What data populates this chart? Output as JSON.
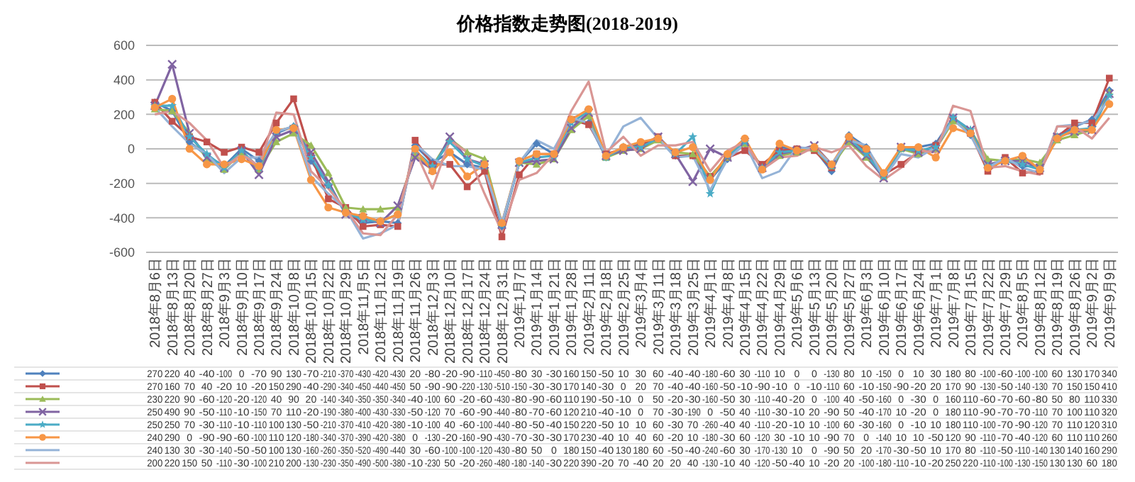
{
  "chart_data": {
    "type": "line",
    "title": "价格指数走势图(2018-2019)",
    "categories": [
      "2018年8月6日",
      "2018年8月13日",
      "2018年8月20日",
      "2018年8月27日",
      "2018年9月3日",
      "2018年9月10日",
      "2018年9月17日",
      "2018年9月24日",
      "2018年10月8日",
      "2018年10月15日",
      "2018年10月22日",
      "2018年10月29日",
      "2018年11月5日",
      "2018年11月12日",
      "2018年11月19日",
      "2018年11月26日",
      "2018年12月3日",
      "2018年12月10日",
      "2018年12月17日",
      "2018年12月24日",
      "2018年12月31日",
      "2019年1月7日",
      "2019年1月14日",
      "2019年1月21日",
      "2019年1月28日",
      "2019年2月11日",
      "2019年2月18日",
      "2019年2月25日",
      "2019年3月4日",
      "2019年3月11日",
      "2019年3月18日",
      "2019年3月25日",
      "2019年4月1日",
      "2019年4月8日",
      "2019年4月15日",
      "2019年4月22日",
      "2019年4月29日",
      "2019年5月6日",
      "2019年5月13日",
      "2019年5月20日",
      "2019年5月27日",
      "2019年6月3日",
      "2019年6月10日",
      "2019年6月17日",
      "2019年6月24日",
      "2019年7月1日",
      "2019年7月8日",
      "2019年7月15日",
      "2019年7月22日",
      "2019年7月29日",
      "2019年8月5日",
      "2019年8月12日",
      "2019年8月19日",
      "2019年8月26日",
      "2019年9月2日",
      "2019年9月9日"
    ],
    "series": [
      {
        "color": "#4f81bd",
        "marker": "diamond",
        "values": [
          270,
          220,
          40,
          -40,
          -100,
          0,
          -70,
          90,
          130,
          -70,
          -210,
          -370,
          -430,
          -420,
          -430,
          20,
          -80,
          -20,
          -90,
          -110,
          -450,
          -80,
          30,
          -30,
          160,
          150,
          -50,
          10,
          30,
          60,
          -40,
          -40,
          -180,
          -60,
          30,
          -110,
          10,
          0,
          0,
          -130,
          80,
          10,
          -150,
          0,
          10,
          30,
          180,
          80,
          -100,
          -60,
          -100,
          -100,
          60,
          130,
          170,
          340
        ]
      },
      {
        "color": "#c0504d",
        "marker": "square",
        "values": [
          270,
          160,
          70,
          40,
          -20,
          10,
          -20,
          150,
          290,
          -40,
          -290,
          -340,
          -450,
          -440,
          -450,
          50,
          -90,
          -90,
          -220,
          -130,
          -510,
          -150,
          -30,
          -30,
          170,
          140,
          -30,
          0,
          20,
          70,
          -40,
          -40,
          -160,
          -50,
          -10,
          -90,
          -10,
          0,
          -10,
          -110,
          60,
          -10,
          -150,
          -90,
          -20,
          20,
          170,
          90,
          -130,
          -50,
          -140,
          -130,
          70,
          150,
          150,
          410
        ]
      },
      {
        "color": "#9bbb59",
        "marker": "triangle",
        "values": [
          230,
          220,
          90,
          -60,
          -120,
          -20,
          -120,
          40,
          90,
          20,
          -140,
          -340,
          -350,
          -350,
          -340,
          -40,
          -100,
          60,
          -20,
          -60,
          -430,
          -80,
          -90,
          -60,
          110,
          190,
          -50,
          -10,
          0,
          50,
          -20,
          -30,
          -160,
          -50,
          30,
          -110,
          -40,
          -20,
          0,
          -100,
          40,
          -50,
          -160,
          0,
          -30,
          0,
          160,
          110,
          -60,
          -70,
          -60,
          -80,
          50,
          80,
          110,
          330
        ]
      },
      {
        "color": "#8064a2",
        "marker": "cross",
        "values": [
          250,
          490,
          90,
          -50,
          -110,
          -10,
          -150,
          70,
          110,
          -20,
          -190,
          -380,
          -400,
          -430,
          -330,
          -50,
          -120,
          70,
          -60,
          -90,
          -440,
          -80,
          -70,
          -60,
          120,
          210,
          -40,
          -10,
          0,
          70,
          -30,
          -190,
          0,
          -50,
          40,
          -110,
          -30,
          -10,
          20,
          -90,
          50,
          -40,
          -170,
          10,
          -20,
          0,
          180,
          110,
          -90,
          -70,
          -70,
          -110,
          70,
          100,
          110,
          320
        ]
      },
      {
        "color": "#4bacc6",
        "marker": "star",
        "values": [
          250,
          250,
          70,
          -30,
          -110,
          -10,
          -110,
          100,
          130,
          -50,
          -210,
          -370,
          -410,
          -420,
          -380,
          -10,
          -100,
          40,
          -60,
          -100,
          -440,
          -80,
          -50,
          -40,
          150,
          220,
          -50,
          10,
          10,
          60,
          -30,
          70,
          -260,
          -40,
          40,
          -110,
          -20,
          -10,
          10,
          -100,
          60,
          -30,
          -160,
          0,
          -10,
          10,
          180,
          110,
          -100,
          -70,
          -90,
          -120,
          70,
          110,
          120,
          310
        ]
      },
      {
        "color": "#f79646",
        "marker": "circle",
        "values": [
          240,
          290,
          0,
          -90,
          -90,
          -60,
          -100,
          110,
          120,
          -180,
          -340,
          -370,
          -390,
          -420,
          -380,
          0,
          -130,
          -20,
          -160,
          -90,
          -430,
          -70,
          -30,
          -30,
          170,
          230,
          -40,
          10,
          40,
          60,
          -20,
          10,
          -180,
          -30,
          60,
          -120,
          30,
          -10,
          10,
          -90,
          70,
          0,
          -140,
          10,
          10,
          -50,
          120,
          90,
          -110,
          -70,
          -40,
          -120,
          60,
          110,
          110,
          260
        ]
      },
      {
        "color": "#95b3d7",
        "marker": "none",
        "values": [
          240,
          130,
          30,
          -30,
          -140,
          -50,
          -50,
          100,
          130,
          -160,
          -260,
          -350,
          -520,
          -490,
          -440,
          30,
          -60,
          -100,
          -100,
          -120,
          -430,
          -80,
          50,
          0,
          180,
          150,
          -40,
          130,
          180,
          60,
          -50,
          -40,
          -240,
          -60,
          30,
          -170,
          -130,
          10,
          0,
          -90,
          50,
          20,
          -170,
          -30,
          -50,
          10,
          170,
          80,
          -110,
          -50,
          -110,
          -140,
          130,
          140,
          160,
          290
        ]
      },
      {
        "color": "#d99694",
        "marker": "none",
        "values": [
          200,
          220,
          150,
          50,
          -110,
          -30,
          -100,
          210,
          200,
          -130,
          -230,
          -350,
          -490,
          -500,
          -380,
          -10,
          -230,
          50,
          -20,
          -260,
          -480,
          -180,
          -140,
          -30,
          220,
          390,
          -20,
          70,
          -40,
          20,
          20,
          40,
          -130,
          -10,
          40,
          -120,
          -50,
          -40,
          10,
          -20,
          20,
          -100,
          -180,
          -110,
          -10,
          -20,
          250,
          220,
          -110,
          -100,
          -130,
          -150,
          130,
          130,
          60,
          180
        ]
      }
    ],
    "ylim": [
      -600,
      600
    ],
    "yticks": [
      -600,
      -400,
      -200,
      0,
      200,
      400,
      600
    ],
    "grid": "y",
    "data_labels": true
  }
}
